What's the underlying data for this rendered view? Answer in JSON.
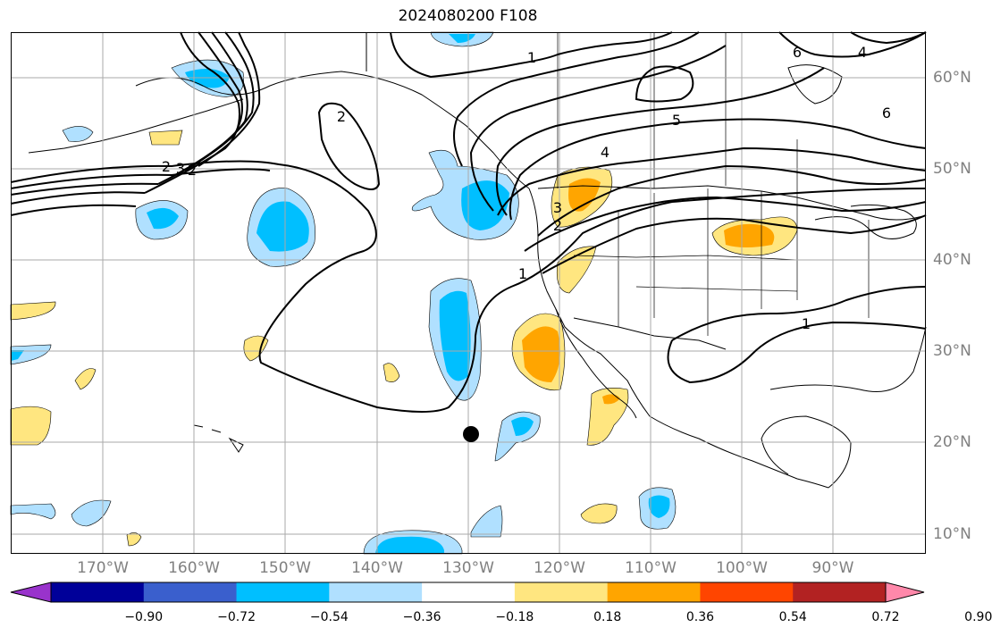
{
  "title": "2024080200 F108",
  "lon_labels": [
    "170°W",
    "160°W",
    "150°W",
    "140°W",
    "130°W",
    "120°W",
    "110°W",
    "100°W",
    "90°W"
  ],
  "lat_labels": [
    "60°N",
    "50°N",
    "40°N",
    "30°N",
    "20°N",
    "10°N"
  ],
  "colorbar": {
    "ticks": [
      "−0.90",
      "−0.72",
      "−0.54",
      "−0.36",
      "−0.18",
      "0.18",
      "0.36",
      "0.54",
      "0.72",
      "0.90"
    ],
    "colors": [
      "#9933cc",
      "#000099",
      "#3a5fcd",
      "#00bfff",
      "#b0e0ff",
      "#ffffff",
      "#ffe680",
      "#ffa500",
      "#ff4500",
      "#b22222",
      "#ff88aa"
    ]
  },
  "contour_labels": [
    "1",
    "1",
    "1",
    "2",
    "2",
    "2",
    "2",
    "3",
    "3",
    "4",
    "4",
    "5",
    "6",
    "6"
  ],
  "marker": "storm-position"
}
